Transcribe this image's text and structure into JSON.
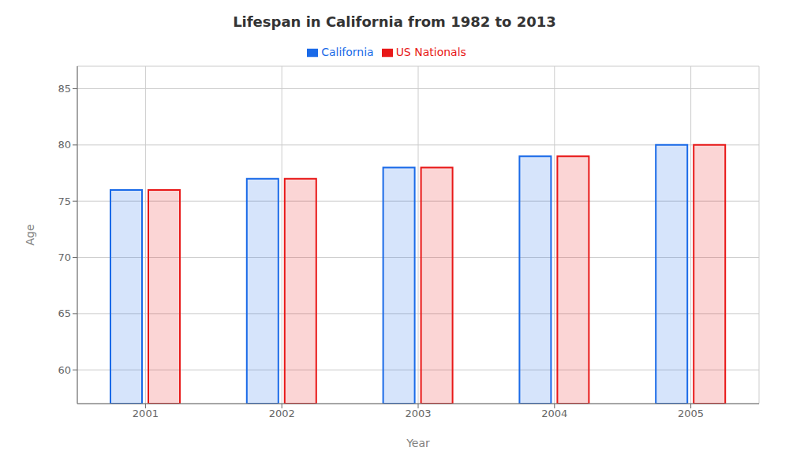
{
  "chart_data": {
    "type": "bar",
    "title": "Lifespan in California from 1982 to 2013",
    "x_label": "Year",
    "y_label": "Age",
    "categories": [
      "2001",
      "2002",
      "2003",
      "2004",
      "2005"
    ],
    "series": [
      {
        "name": "California",
        "color": "#1a6ae8",
        "values": [
          76,
          77,
          78,
          79,
          80
        ]
      },
      {
        "name": "US Nationals",
        "color": "#e81818",
        "values": [
          76,
          77,
          78,
          79,
          80
        ]
      }
    ],
    "ylim": [
      57,
      87
    ],
    "yticks": [
      60,
      65,
      70,
      75,
      80,
      85
    ],
    "grid": true,
    "legend": "top"
  }
}
